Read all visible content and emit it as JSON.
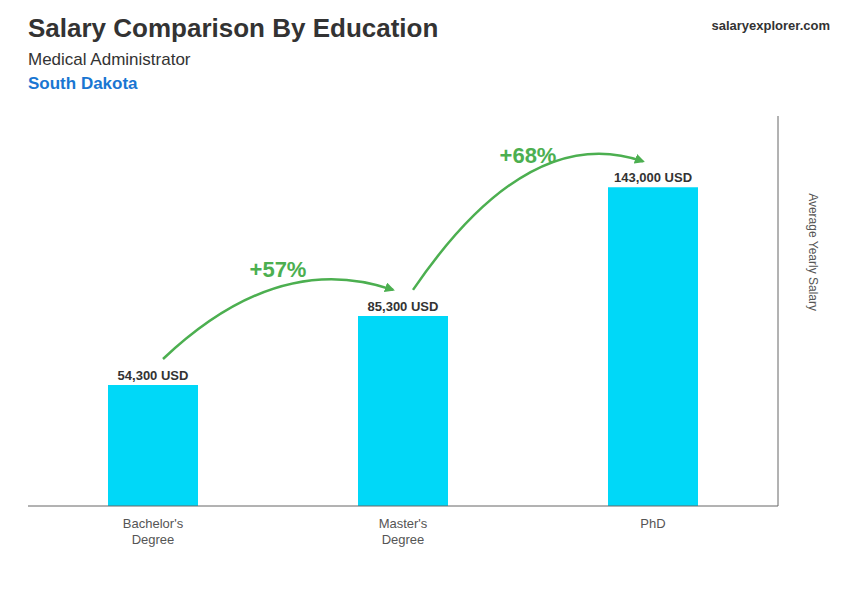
{
  "chart_data": {
    "type": "bar",
    "title": "Salary Comparison By Education",
    "subtitle": "Medical Administrator",
    "location": "South Dakota",
    "brand": "salaryexplorer.com",
    "categories": [
      "Bachelor's\nDegree",
      "Master's\nDegree",
      "PhD"
    ],
    "values": [
      54300,
      85300,
      143000
    ],
    "value_labels": [
      "54,300 USD",
      "85,300 USD",
      "143,000 USD"
    ],
    "data_labels": true,
    "annotations": [
      "+57%",
      "+68%"
    ],
    "color": "#00d8f8",
    "ylabel": "Average Yearly Salary",
    "ylim": [
      0,
      175000
    ],
    "tick_labels": "x",
    "grid": false
  }
}
